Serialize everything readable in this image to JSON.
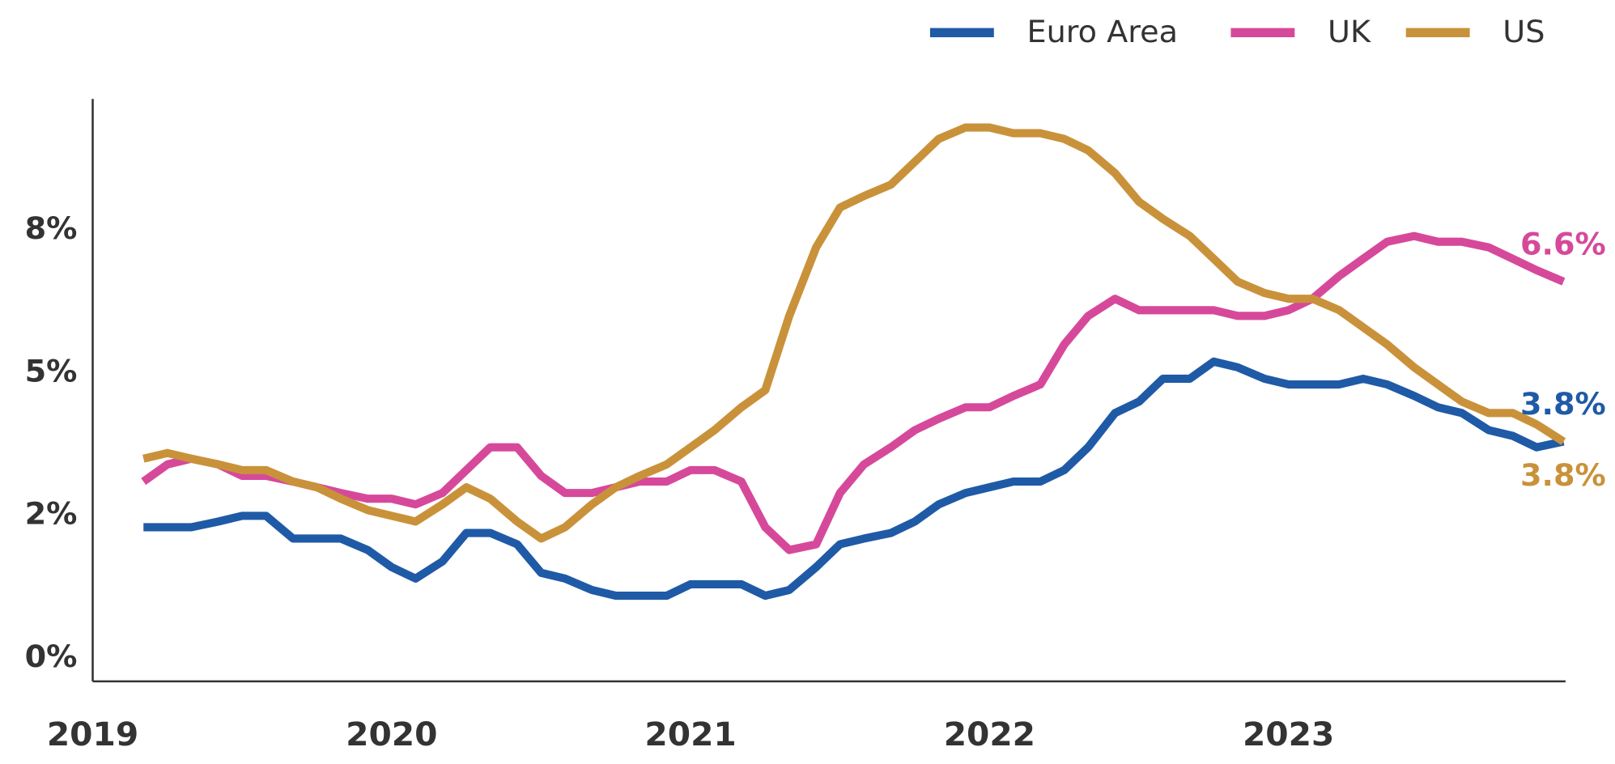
{
  "chart_data": {
    "type": "line",
    "x": [
      2019.17,
      2019.25,
      2019.33,
      2019.42,
      2019.5,
      2019.58,
      2019.67,
      2019.75,
      2019.83,
      2019.92,
      2020,
      2020.08,
      2020.17,
      2020.25,
      2020.33,
      2020.42,
      2020.5,
      2020.58,
      2020.67,
      2020.75,
      2020.83,
      2020.92,
      2021,
      2021.08,
      2021.17,
      2021.25,
      2021.33,
      2021.42,
      2021.5,
      2021.58,
      2021.67,
      2021.75,
      2021.83,
      2021.92,
      2022,
      2022.08,
      2022.17,
      2022.25,
      2022.33,
      2022.42,
      2022.5,
      2022.58,
      2022.67,
      2022.75,
      2022.83,
      2022.92,
      2023,
      2023.08,
      2023.17,
      2023.25,
      2023.33,
      2023.42,
      2023.5,
      2023.58,
      2023.67,
      2023.75,
      2023.83,
      2023.92
    ],
    "series": [
      {
        "name": "Euro Area",
        "color": "#1f5aa6",
        "end_label": "3.8%",
        "values": [
          2.3,
          2.3,
          2.3,
          2.4,
          2.5,
          2.5,
          2.1,
          2.1,
          2.1,
          1.9,
          1.6,
          1.4,
          1.7,
          2.2,
          2.2,
          2.0,
          1.5,
          1.4,
          1.2,
          1.1,
          1.1,
          1.1,
          1.3,
          1.3,
          1.3,
          1.1,
          1.2,
          1.6,
          2.0,
          2.1,
          2.2,
          2.4,
          2.7,
          2.9,
          3.0,
          3.1,
          3.1,
          3.3,
          3.7,
          4.3,
          4.5,
          4.9,
          4.9,
          5.2,
          5.1,
          4.9,
          4.8,
          4.8,
          4.8,
          4.9,
          4.8,
          4.6,
          4.4,
          4.3,
          4.0,
          3.9,
          3.7,
          3.8
        ]
      },
      {
        "name": "UK",
        "color": "#d6499a",
        "end_label": "6.6%",
        "values": [
          3.1,
          3.4,
          3.5,
          3.4,
          3.2,
          3.2,
          3.1,
          3.0,
          2.9,
          2.8,
          2.8,
          2.7,
          2.9,
          3.3,
          3.7,
          3.7,
          3.2,
          2.9,
          2.9,
          3.0,
          3.1,
          3.1,
          3.3,
          3.3,
          3.1,
          2.3,
          1.9,
          2.0,
          2.9,
          3.4,
          3.7,
          4.0,
          4.2,
          4.4,
          4.4,
          4.6,
          4.8,
          5.5,
          6.0,
          6.3,
          6.1,
          6.1,
          6.1,
          6.1,
          6.0,
          6.0,
          6.1,
          6.3,
          6.7,
          7.0,
          7.3,
          7.4,
          7.3,
          7.3,
          7.2,
          7.0,
          6.8,
          6.6
        ]
      },
      {
        "name": "US",
        "color": "#c9923a",
        "end_label": "3.8%",
        "values": [
          3.5,
          3.6,
          3.5,
          3.4,
          3.3,
          3.3,
          3.1,
          3.0,
          2.8,
          2.6,
          2.5,
          2.4,
          2.7,
          3.0,
          2.8,
          2.4,
          2.1,
          2.3,
          2.7,
          3.0,
          3.2,
          3.4,
          3.7,
          4.0,
          4.4,
          4.7,
          6.0,
          7.2,
          7.9,
          8.1,
          8.3,
          8.7,
          9.1,
          9.3,
          9.3,
          9.2,
          9.2,
          9.1,
          8.9,
          8.5,
          8.0,
          7.7,
          7.4,
          7.0,
          6.6,
          6.4,
          6.3,
          6.3,
          6.1,
          5.8,
          5.5,
          5.1,
          4.8,
          4.5,
          4.3,
          4.3,
          4.1,
          3.8
        ]
      }
    ],
    "xlim": [
      2019,
      2023.92
    ],
    "xticks": [
      2019,
      2020,
      2021,
      2022,
      2023
    ],
    "ylim": [
      -0.4,
      9.8
    ],
    "yticks": [
      {
        "value": 0,
        "label": "0%"
      },
      {
        "value": 2.5,
        "label": "2%"
      },
      {
        "value": 5,
        "label": "5%"
      },
      {
        "value": 7.5,
        "label": "8%"
      }
    ],
    "grid": false,
    "legend": "top-right"
  }
}
